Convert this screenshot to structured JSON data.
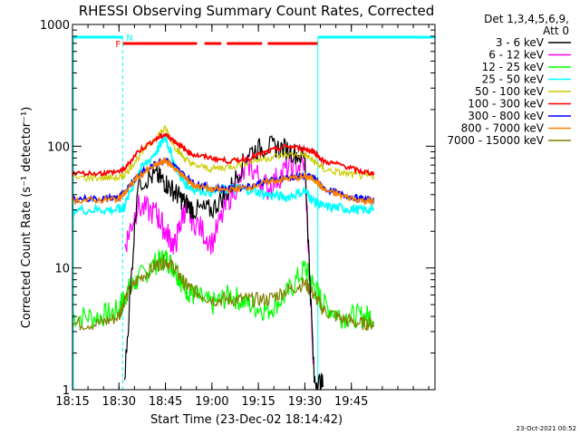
{
  "chart_data": {
    "type": "line",
    "title": "RHESSI Observing Summary Count Rates, Corrected",
    "xlabel": "Start Time (23-Dec-02 18:14:42)",
    "ylabel": "Corrected Count Rate (s⁻¹ detector⁻¹)",
    "yscale": "log",
    "ylim": [
      1,
      1000
    ],
    "xlim_minutes": [
      18.25,
      20.2
    ],
    "xticks": [
      "18:15",
      "18:30",
      "18:45",
      "19:00",
      "19:15",
      "19:30",
      "19:45"
    ],
    "xtick_values": [
      18.25,
      18.5,
      18.75,
      19.0,
      19.25,
      19.5,
      19.75
    ],
    "yticks": [
      "1",
      "10",
      "100",
      "1000"
    ],
    "ytick_values": [
      1,
      10,
      100,
      1000
    ],
    "legend_header": [
      "Det 1,3,4,5,6,9,",
      "Att 0"
    ],
    "legend_position": "right",
    "flags": [
      {
        "label": "F",
        "color": "#ff0000"
      },
      {
        "label": "N",
        "color": "#00ffff"
      }
    ],
    "footer_date": "23-Oct-2021 00:52",
    "x": [
      18.25,
      18.4,
      18.5,
      18.53,
      18.6,
      18.7,
      18.75,
      18.8,
      18.85,
      18.9,
      19.0,
      19.1,
      19.2,
      19.3,
      19.4,
      19.5,
      19.55,
      19.6,
      19.7,
      19.8,
      19.87
    ],
    "series": [
      {
        "name": "3 - 6 keV",
        "color": "#000000",
        "values": [
          null,
          null,
          null,
          1.2,
          50,
          58,
          50,
          42,
          35,
          30,
          30,
          45,
          90,
          100,
          95,
          80,
          1.2,
          1.1,
          null,
          null,
          null
        ]
      },
      {
        "name": "6 - 12 keV",
        "color": "#ff00ff",
        "values": [
          null,
          null,
          null,
          15,
          32,
          28,
          20,
          15,
          30,
          25,
          16,
          40,
          70,
          45,
          65,
          72,
          1.1,
          null,
          null,
          null,
          null
        ]
      },
      {
        "name": "12 - 25 keV",
        "color": "#00ff00",
        "values": [
          4,
          4,
          4.5,
          6,
          8,
          11,
          12,
          10,
          7,
          6,
          5,
          6,
          5,
          4.5,
          6,
          10,
          7,
          5,
          4,
          4,
          4
        ]
      },
      {
        "name": "25 - 50 keV",
        "color": "#00ffff",
        "values": [
          30,
          30,
          30,
          32,
          60,
          90,
          120,
          70,
          50,
          45,
          42,
          45,
          44,
          40,
          38,
          43,
          35,
          32,
          31,
          30,
          30
        ]
      },
      {
        "name": "50 - 100 keV",
        "color": "#cccc00",
        "values": [
          55,
          55,
          55,
          58,
          80,
          120,
          140,
          100,
          80,
          70,
          65,
          68,
          75,
          80,
          85,
          85,
          75,
          65,
          60,
          57,
          57
        ]
      },
      {
        "name": "100 - 300 keV",
        "color": "#ff0000",
        "values": [
          60,
          60,
          62,
          65,
          90,
          115,
          125,
          110,
          95,
          85,
          80,
          75,
          80,
          90,
          100,
          95,
          90,
          75,
          70,
          62,
          60
        ]
      },
      {
        "name": "300 - 800 keV",
        "color": "#0000ff",
        "values": [
          37,
          37,
          38,
          42,
          58,
          72,
          78,
          68,
          58,
          50,
          45,
          45,
          47,
          52,
          55,
          57,
          55,
          45,
          40,
          37,
          36
        ]
      },
      {
        "name": "800 - 7000 keV",
        "color": "#ff8000",
        "values": [
          36,
          36,
          37,
          41,
          56,
          70,
          76,
          66,
          56,
          48,
          44,
          44,
          46,
          51,
          54,
          56,
          54,
          44,
          39,
          36,
          35
        ]
      },
      {
        "name": "7000 - 15000 keV",
        "color": "#808000",
        "values": [
          3.5,
          3.5,
          4,
          5.5,
          8,
          10.5,
          11.5,
          10,
          7.5,
          6.5,
          5.5,
          5.5,
          5.5,
          5.5,
          6.5,
          7.5,
          6,
          4.5,
          3.8,
          3.5,
          3.5
        ]
      }
    ]
  }
}
